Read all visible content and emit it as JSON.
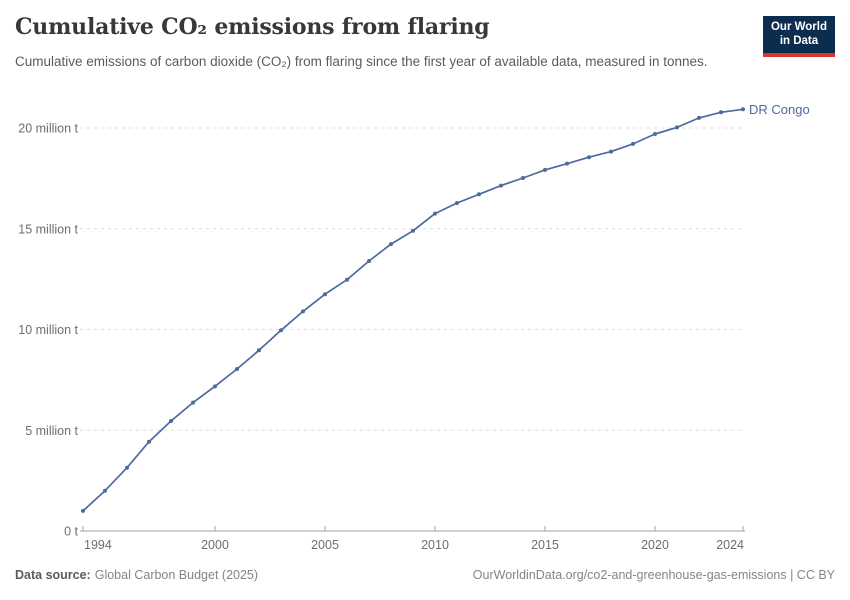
{
  "header": {
    "title": "Cumulative CO₂ emissions from flaring",
    "subtitle": "Cumulative emissions of carbon dioxide (CO₂) from flaring since the first year of available data, measured in tonnes.",
    "logo": {
      "line1": "Our World",
      "line2": "in Data"
    }
  },
  "chart_data": {
    "type": "line",
    "title": "Cumulative CO₂ emissions from flaring",
    "unit": "million tonnes",
    "xlabel": "",
    "ylabel": "",
    "grid": "horizontal-dashed",
    "legend_position": "end-of-line-label",
    "x_range": [
      1994,
      2024
    ],
    "ylim_million_t": [
      0,
      21
    ],
    "x_ticks": [
      1994,
      2000,
      2005,
      2010,
      2015,
      2020,
      2024
    ],
    "y_ticks": [
      {
        "value": 0,
        "label": "0 t"
      },
      {
        "value": 5,
        "label": "5 million t"
      },
      {
        "value": 10,
        "label": "10 million t"
      },
      {
        "value": 15,
        "label": "15 million t"
      },
      {
        "value": 20,
        "label": "20 million t"
      }
    ],
    "series": [
      {
        "name": "DR Congo",
        "color": "#4c6a9c",
        "x": [
          1994,
          1995,
          1996,
          1997,
          1998,
          1999,
          2000,
          2001,
          2002,
          2003,
          2004,
          2005,
          2006,
          2007,
          2008,
          2009,
          2010,
          2011,
          2012,
          2013,
          2014,
          2015,
          2016,
          2017,
          2018,
          2019,
          2020,
          2021,
          2022,
          2023,
          2024
        ],
        "values_million_t": [
          1.0,
          2.0,
          3.14,
          4.43,
          5.46,
          6.37,
          7.18,
          8.04,
          8.97,
          9.96,
          10.9,
          11.75,
          12.47,
          13.4,
          14.24,
          14.9,
          15.75,
          16.28,
          16.71,
          17.14,
          17.52,
          17.92,
          18.23,
          18.55,
          18.83,
          19.21,
          19.7,
          20.03,
          20.5,
          20.78,
          20.93
        ]
      }
    ]
  },
  "footer": {
    "data_source_label": "Data source:",
    "data_source_value": "Global Carbon Budget (2025)",
    "attribution": "OurWorldinData.org/co2-and-greenhouse-gas-emissions | CC BY"
  },
  "colors": {
    "line": "#4c6a9c",
    "grid": "#dcdcdc",
    "axis": "#a3a3a3",
    "tick_text": "#6e6e6e",
    "logo_bg": "#0c2d4f",
    "logo_accent": "#d8382b"
  }
}
